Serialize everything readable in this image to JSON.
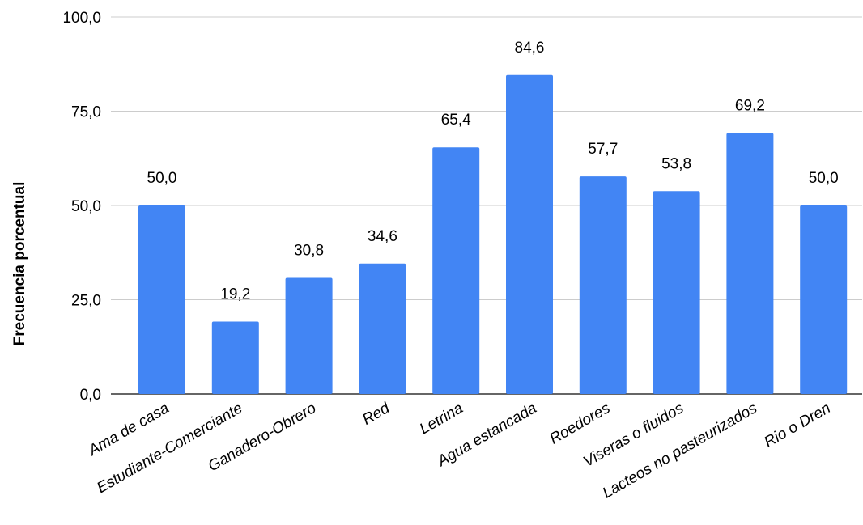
{
  "chart_data": {
    "type": "bar",
    "title": "",
    "xlabel": "",
    "ylabel": "Frecuencia porcentual",
    "categories": [
      "Ama de casa",
      "Estudiante-Comerciante",
      "Ganadero-Obrero",
      "Red",
      "Letrina",
      "Agua estancada",
      "Roedores",
      "Viseras o fluidos",
      "Lacteos no pasteurizados",
      "Rio o Dren"
    ],
    "values": [
      50.0,
      19.2,
      30.8,
      34.6,
      65.4,
      84.6,
      57.7,
      53.8,
      69.2,
      50.0
    ],
    "value_labels": [
      "50,0",
      "19,2",
      "30,8",
      "34,6",
      "65,4",
      "84,6",
      "57,7",
      "53,8",
      "69,2",
      "50,0"
    ],
    "ylim": [
      0,
      100
    ],
    "yticks": [
      0,
      25,
      50,
      75,
      100
    ],
    "ytick_labels": [
      "0,0",
      "25,0",
      "50,0",
      "75,0",
      "100,0"
    ],
    "grid": true,
    "legend": "none",
    "bar_color": "#4285F4"
  }
}
